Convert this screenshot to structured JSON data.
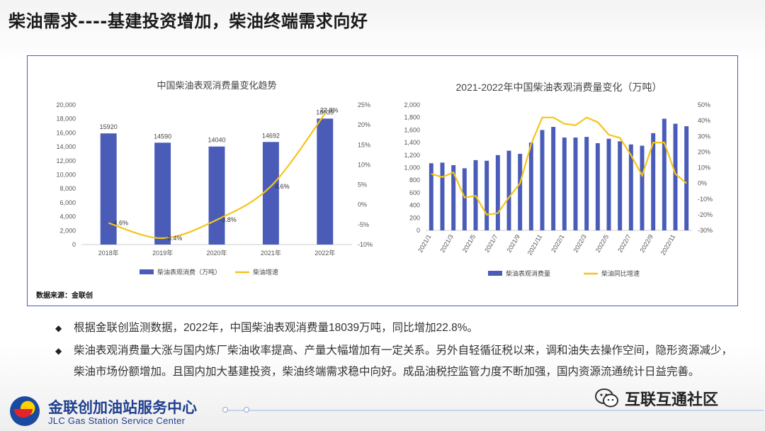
{
  "page": {
    "title": "柴油需求----基建投资增加，柴油终端需求向好",
    "source_note": "数据来源：金联创",
    "bullets": [
      "根据金联创监测数据，2022年，中国柴油表观消费量18039万吨，同比增加22.8%。",
      "柴油表观消费量大涨与国内炼厂柴油收率提高、产量大幅增加有一定关系。另外自轻循征税以来，调和油失去操作空间，隐形资源减少，柴油市场份额增加。且国内加大基建投资，柴油终端需求稳中向好。成品油税控监管力度不断加强，国内资源流通统计日益完善。"
    ],
    "bullet_icon": "diamond-bullet-icon",
    "org_name_cn": "金联创加油站服务中心",
    "org_name_en": "JLC Gas Station Service Center",
    "watermark": "互联互通社区",
    "colors": {
      "bar": "#4a5cb8",
      "line": "#f5c518",
      "frame": "#4a5cb8"
    }
  },
  "chart_data": [
    {
      "type": "bar",
      "title": "中国柴油表观消费量变化趋势",
      "categories": [
        "2018年",
        "2019年",
        "2020年",
        "2021年",
        "2022年"
      ],
      "series": [
        {
          "name": "柴油表观消费（万吨）",
          "type": "bar",
          "axis": "left",
          "values": [
            15920,
            14590,
            14040,
            14692,
            18039
          ],
          "labels": [
            "15920",
            "14590",
            "14040",
            "14692",
            "18039"
          ]
        },
        {
          "name": "柴油增速",
          "type": "line",
          "axis": "right",
          "values": [
            -4.6,
            -8.4,
            -3.8,
            4.6,
            22.8
          ],
          "labels": [
            "-4.6%",
            "-8.4%",
            "-3.8%",
            "4.6%",
            "22.8%"
          ]
        }
      ],
      "y_left": {
        "min": 0,
        "max": 20000,
        "ticks": [
          0,
          2000,
          4000,
          6000,
          8000,
          10000,
          12000,
          14000,
          16000,
          18000,
          20000
        ],
        "tick_labels": [
          "0",
          "2,000",
          "4,000",
          "6,000",
          "8,000",
          "10,000",
          "12,000",
          "14,000",
          "16,000",
          "18,000",
          "20,000"
        ]
      },
      "y_right": {
        "min": -10,
        "max": 25,
        "ticks": [
          -10,
          -5,
          0,
          5,
          10,
          15,
          20,
          25
        ],
        "tick_labels": [
          "-10%",
          "-5%",
          "0%",
          "5%",
          "10%",
          "15%",
          "20%",
          "25%"
        ]
      },
      "legend": [
        "柴油表观消费（万吨）",
        "柴油增速"
      ],
      "legend_position": "bottom"
    },
    {
      "type": "bar",
      "title": "2021-2022年中国柴油表观消费量变化（万吨）",
      "categories": [
        "2021/1",
        "2021/2",
        "2021/3",
        "2021/4",
        "2021/5",
        "2021/6",
        "2021/7",
        "2021/8",
        "2021/9",
        "2021/10",
        "2021/11",
        "2021/12",
        "2022/1",
        "2022/2",
        "2022/3",
        "2022/4",
        "2022/5",
        "2022/6",
        "2022/7",
        "2022/8",
        "2022/9",
        "2022/10",
        "2022/11",
        "2022/12"
      ],
      "tick_categories": [
        "2021/1",
        "2021/3",
        "2021/5",
        "2021/7",
        "2021/9",
        "2021/11",
        "2022/1",
        "2022/3",
        "2022/5",
        "2022/7",
        "2022/9",
        "2022/11"
      ],
      "series": [
        {
          "name": "柴油表观消费量",
          "type": "bar",
          "axis": "left",
          "values": [
            1070,
            1080,
            1040,
            990,
            1120,
            1110,
            1200,
            1270,
            1220,
            1400,
            1600,
            1650,
            1480,
            1480,
            1490,
            1390,
            1460,
            1420,
            1370,
            1350,
            1550,
            1780,
            1700,
            1660
          ]
        },
        {
          "name": "柴油同比增速",
          "type": "line",
          "axis": "right",
          "values": [
            6,
            4,
            7,
            -9,
            -8,
            -20,
            -19,
            -9,
            0,
            25,
            42,
            42,
            38,
            37,
            42,
            39,
            31,
            29,
            18,
            5,
            26,
            26,
            6,
            0
          ]
        }
      ],
      "y_left": {
        "min": 0,
        "max": 2000,
        "ticks": [
          0,
          200,
          400,
          600,
          800,
          1000,
          1200,
          1400,
          1600,
          1800,
          2000
        ],
        "tick_labels": [
          "0",
          "200",
          "400",
          "600",
          "800",
          "1,000",
          "1,200",
          "1,400",
          "1,600",
          "1,800",
          "2,000"
        ]
      },
      "y_right": {
        "min": -30,
        "max": 50,
        "ticks": [
          -30,
          -20,
          -10,
          0,
          10,
          20,
          30,
          40,
          50
        ],
        "tick_labels": [
          "-30%",
          "-20%",
          "-10%",
          "0%",
          "10%",
          "20%",
          "30%",
          "40%",
          "50%"
        ]
      },
      "legend": [
        "柴油表观消费量",
        "柴油同比增速"
      ],
      "legend_position": "bottom"
    }
  ]
}
